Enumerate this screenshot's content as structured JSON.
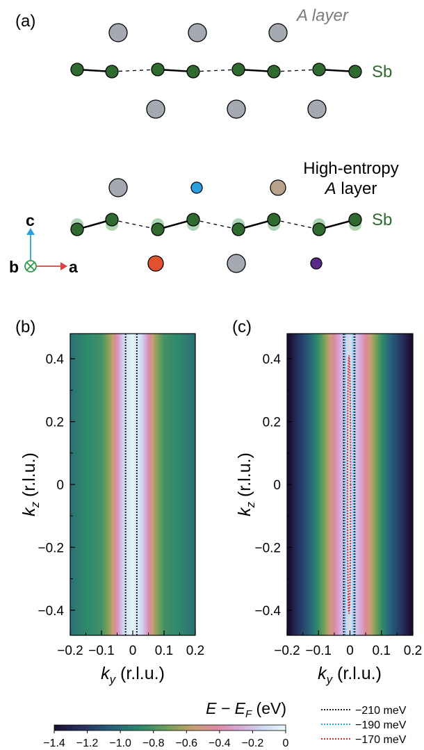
{
  "panel_a": {
    "label": "(a)",
    "top_layer_label": "A layer",
    "sb_label_top": "Sb",
    "he_layer_line1": "High-entropy",
    "he_layer_line2": "A layer",
    "sb_label_bottom": "Sb",
    "axis_c": "c",
    "axis_b": "b",
    "axis_a": "a",
    "colors": {
      "a_site_gray": "#a4a9b2",
      "sb_green": "#2f6b2f",
      "sb_green_faded": "#8fc89a",
      "cyan_atom": "#2ba0de",
      "tan_atom": "#b9a38c",
      "red_atom": "#e3512f",
      "purple_atom": "#5a2a88",
      "c_arrow": "#2ba0de",
      "a_arrow": "#e04040",
      "b_symbol": "#2e9a4a"
    }
  },
  "panel_b": {
    "label": "(b)"
  },
  "panel_c": {
    "label": "(c)"
  },
  "axes": {
    "xlabel_sym": "k",
    "xlabel_sub": "y",
    "xlabel_unit": " (r.l.u.)",
    "ylabel_sym": "k",
    "ylabel_sub": "z",
    "ylabel_unit": " (r.l.u.)",
    "xticks": [
      "−0.2",
      "−0.1",
      "0",
      "0.1",
      "0.2"
    ],
    "yticks": [
      "0.4",
      "0.2",
      "0",
      "−0.2",
      "−0.4"
    ]
  },
  "colorbar": {
    "label_sym": "E − E",
    "label_sub": "F",
    "label_unit": " (eV)",
    "ticks": [
      "−1.4",
      "−1.2",
      "−1.0",
      "−0.8",
      "−0.6",
      "−0.4",
      "−0.2",
      "0"
    ]
  },
  "legend": [
    {
      "label": "−210 meV",
      "color": "#1a1a1a"
    },
    {
      "label": "−190 meV",
      "color": "#19a3d6"
    },
    {
      "label": "−170 meV",
      "color": "#d92828"
    }
  ],
  "chart_data": [
    {
      "type": "heatmap",
      "panel": "(b)",
      "xlabel": "k_y (r.l.u.)",
      "ylabel": "k_z (r.l.u.)",
      "xlim": [
        -0.2,
        0.2
      ],
      "ylim": [
        -0.48,
        0.48
      ],
      "x": [
        -0.2,
        -0.15,
        -0.1,
        -0.07,
        -0.05,
        -0.03,
        -0.01,
        0.0,
        0.01,
        0.03,
        0.05,
        0.07,
        0.1,
        0.15,
        0.2
      ],
      "energy_eV": [
        -0.98,
        -0.88,
        -0.82,
        -0.62,
        -0.38,
        -0.14,
        -0.05,
        -0.03,
        -0.05,
        -0.14,
        -0.38,
        -0.62,
        -0.82,
        -0.88,
        -0.98
      ],
      "contours": [
        {
          "name": "−210 meV",
          "kind": "vertical_lines",
          "x": [
            -0.023,
            0.013
          ]
        }
      ]
    },
    {
      "type": "heatmap",
      "panel": "(c)",
      "xlabel": "k_y (r.l.u.)",
      "ylabel": "k_z (r.l.u.)",
      "xlim": [
        -0.2,
        0.2
      ],
      "ylim": [
        -0.48,
        0.48
      ],
      "x": [
        -0.2,
        -0.17,
        -0.13,
        -0.1,
        -0.07,
        -0.05,
        -0.03,
        -0.01,
        0.0,
        0.01,
        0.03,
        0.05,
        0.07,
        0.1,
        0.13,
        0.17,
        0.2
      ],
      "energy_eV": [
        -1.45,
        -1.25,
        -1.05,
        -0.85,
        -0.6,
        -0.42,
        -0.25,
        -0.15,
        -0.12,
        -0.15,
        -0.25,
        -0.42,
        -0.6,
        -0.85,
        -1.05,
        -1.25,
        -1.45
      ],
      "contours": [
        {
          "name": "−210 meV",
          "kind": "vertical_lines",
          "x": [
            -0.02,
            0.015
          ]
        },
        {
          "name": "−190 meV",
          "kind": "vertical_lines",
          "x": [
            -0.016,
            0.011
          ]
        },
        {
          "name": "−170 meV",
          "kind": "ellipse",
          "x_center": -0.003,
          "x_half_width": 0.005,
          "kz_range": [
            -0.41,
            0.41
          ]
        }
      ]
    }
  ]
}
